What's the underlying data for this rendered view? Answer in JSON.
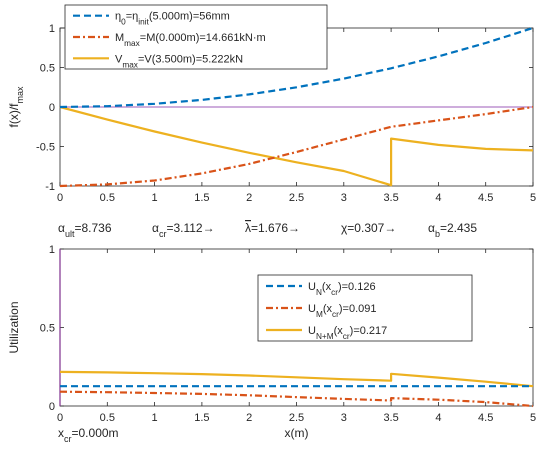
{
  "colors": {
    "series_blue": "#0072BD",
    "series_orange": "#D95319",
    "series_yellow": "#EDB120",
    "zero_line": "#B07CC6",
    "axis": "#262626",
    "background": "#FFFFFF"
  },
  "chart_data": [
    {
      "type": "line",
      "title": "",
      "xlabel": "",
      "ylabel": "f(x)/f_max",
      "ylabel_parts": {
        "main": "f(x)/f",
        "sub": "max"
      },
      "xlim": [
        0,
        5
      ],
      "ylim": [
        -1,
        1
      ],
      "grid": false,
      "legend_position": "top-left",
      "xticks": [
        "0",
        "0.5",
        "1",
        "1.5",
        "2",
        "2.5",
        "3",
        "3.5",
        "4",
        "4.5",
        "5"
      ],
      "yticks": [
        "-1",
        "-0.5",
        "0",
        "0.5",
        "1"
      ],
      "legend": [
        {
          "series": 0,
          "parts": [
            {
              "t": "η",
              "s": ""
            },
            {
              "t": "0",
              "s": "sub"
            },
            {
              "t": "=η",
              "s": ""
            },
            {
              "t": "init",
              "s": "sub"
            },
            {
              "t": "(5.000m)=56mm",
              "s": ""
            }
          ]
        },
        {
          "series": 1,
          "parts": [
            {
              "t": "M",
              "s": ""
            },
            {
              "t": "max",
              "s": "sub"
            },
            {
              "t": "=M(0.000m)=14.661kN·m",
              "s": ""
            }
          ]
        },
        {
          "series": 2,
          "parts": [
            {
              "t": "V",
              "s": ""
            },
            {
              "t": "max",
              "s": "sub"
            },
            {
              "t": "=V(3.500m)=5.222kN",
              "s": ""
            }
          ]
        }
      ],
      "series": [
        {
          "name": "η0=ηinit(5.000m)=56mm",
          "color": "#0072BD",
          "style": "dashed",
          "x": [
            0,
            0.5,
            1,
            1.5,
            2,
            2.5,
            3,
            3.5,
            4,
            4.5,
            5
          ],
          "y": [
            0,
            0.01,
            0.04,
            0.09,
            0.16,
            0.25,
            0.36,
            0.49,
            0.64,
            0.81,
            1.0
          ]
        },
        {
          "name": "Mmax=M(0.000m)=14.661kN·m",
          "color": "#D95319",
          "style": "dashdot",
          "x": [
            0,
            0.5,
            1,
            1.5,
            2,
            2.5,
            3,
            3.5,
            4,
            4.5,
            5
          ],
          "y": [
            -1.0,
            -0.98,
            -0.93,
            -0.84,
            -0.72,
            -0.57,
            -0.41,
            -0.25,
            -0.17,
            -0.09,
            0.0
          ]
        },
        {
          "name": "Vmax=V(3.500m)=5.222kN",
          "color": "#EDB120",
          "style": "solid",
          "x": [
            0,
            0.5,
            1,
            1.5,
            2,
            2.5,
            3,
            3.5,
            3.5,
            4,
            4.5,
            5
          ],
          "y": [
            0,
            -0.16,
            -0.31,
            -0.45,
            -0.58,
            -0.7,
            -0.81,
            -0.99,
            -0.4,
            -0.48,
            -0.53,
            -0.55
          ]
        },
        {
          "name": "",
          "color": "#B07CC6",
          "style": "solid",
          "x": [
            0,
            5
          ],
          "y": [
            0,
            0
          ]
        }
      ]
    },
    {
      "type": "line",
      "title": "",
      "xlabel": "x(m)",
      "ylabel": "Utilization",
      "xlim": [
        0,
        5
      ],
      "ylim": [
        0,
        1
      ],
      "grid": false,
      "legend_position": "center-right",
      "xticks": [
        "0",
        "0.5",
        "1",
        "1.5",
        "2",
        "2.5",
        "3",
        "3.5",
        "4",
        "4.5",
        "5"
      ],
      "yticks": [
        "0",
        "0.5",
        "1"
      ],
      "legend": [
        {
          "series": 0,
          "parts": [
            {
              "t": "U",
              "s": ""
            },
            {
              "t": "N",
              "s": "sub"
            },
            {
              "t": "(x",
              "s": ""
            },
            {
              "t": "cr",
              "s": "sub"
            },
            {
              "t": ")=0.126",
              "s": ""
            }
          ]
        },
        {
          "series": 1,
          "parts": [
            {
              "t": "U",
              "s": ""
            },
            {
              "t": "M",
              "s": "sub"
            },
            {
              "t": "(x",
              "s": ""
            },
            {
              "t": "cr",
              "s": "sub"
            },
            {
              "t": ")=0.091",
              "s": ""
            }
          ]
        },
        {
          "series": 2,
          "parts": [
            {
              "t": "U",
              "s": ""
            },
            {
              "t": "N+M",
              "s": "sub"
            },
            {
              "t": "(x",
              "s": ""
            },
            {
              "t": "cr",
              "s": "sub"
            },
            {
              "t": ")=0.217",
              "s": ""
            }
          ]
        }
      ],
      "series": [
        {
          "name": "UN(xcr)=0.126",
          "color": "#0072BD",
          "style": "dashed",
          "x": [
            0,
            5
          ],
          "y": [
            0.126,
            0.126
          ]
        },
        {
          "name": "UM(xcr)=0.091",
          "color": "#D95319",
          "style": "dashdot",
          "x": [
            0,
            0.5,
            1,
            1.5,
            2,
            2.5,
            3,
            3.5,
            3.5,
            4,
            4.5,
            5
          ],
          "y": [
            0.091,
            0.088,
            0.083,
            0.077,
            0.068,
            0.057,
            0.045,
            0.035,
            0.05,
            0.04,
            0.025,
            0.0
          ]
        },
        {
          "name": "UN+M(xcr)=0.217",
          "color": "#EDB120",
          "style": "solid",
          "x": [
            0,
            0.5,
            1,
            1.5,
            2,
            2.5,
            3,
            3.5,
            3.5,
            4,
            4.5,
            5
          ],
          "y": [
            0.217,
            0.214,
            0.209,
            0.203,
            0.194,
            0.183,
            0.171,
            0.161,
            0.205,
            0.181,
            0.155,
            0.126
          ]
        },
        {
          "name": "",
          "color": "#7E2F8E",
          "style": "solid",
          "x": [
            0,
            0
          ],
          "y": [
            0,
            1
          ]
        }
      ]
    }
  ],
  "info_line": [
    {
      "parts": [
        {
          "t": "α",
          "s": ""
        },
        {
          "t": "ult",
          "s": "sub"
        },
        {
          "t": "=8.736",
          "s": ""
        }
      ]
    },
    {
      "parts": [
        {
          "t": "α",
          "s": ""
        },
        {
          "t": "cr",
          "s": "sub"
        },
        {
          "t": "=3.112→",
          "s": ""
        }
      ]
    },
    {
      "parts": [
        {
          "t": "λ",
          "s": "bar"
        },
        {
          "t": "=1.676→",
          "s": ""
        }
      ]
    },
    {
      "parts": [
        {
          "t": "χ=0.307→",
          "s": ""
        }
      ]
    },
    {
      "parts": [
        {
          "t": "α",
          "s": ""
        },
        {
          "t": "b",
          "s": "sub"
        },
        {
          "t": "=2.435",
          "s": ""
        }
      ]
    }
  ],
  "xcr_label": {
    "parts": [
      {
        "t": "x",
        "s": ""
      },
      {
        "t": "cr",
        "s": "sub"
      },
      {
        "t": "=0.000m",
        "s": ""
      }
    ]
  }
}
